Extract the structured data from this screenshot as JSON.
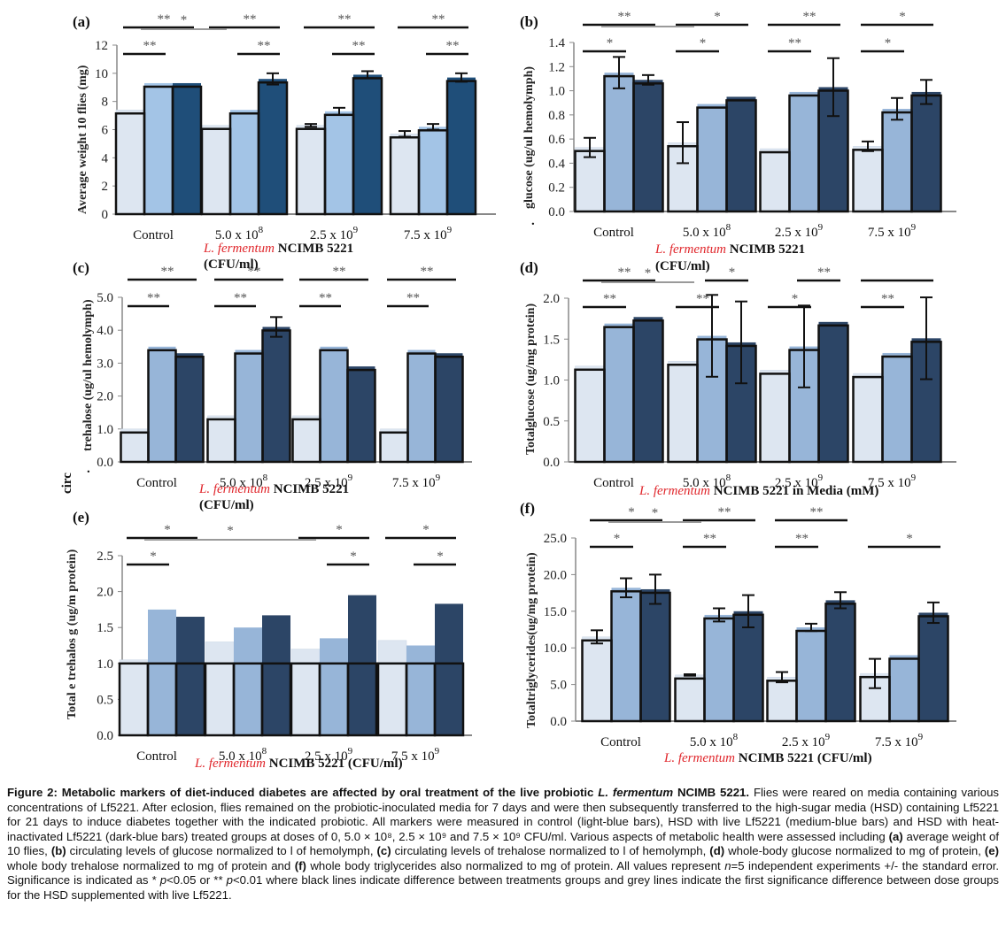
{
  "figure": {
    "caption_title": "Figure 2: Metabolic markers of diet-induced diabetes are affected by oral treatment of the live probiotic",
    "caption_species": "L. fermentum",
    "caption_strain": "NCIMB 5221.",
    "caption_body_1": "Flies were reared on media containing various concentrations of Lf5221. After eclosion, flies remained on the probiotic-inoculated media for 7 days and were then subsequently transferred to the high-sugar media (HSD) containing Lf5221 for 21 days to induce diabetes together with the indicated probiotic. All markers were measured in control (light-blue bars), HSD with live Lf5221 (medium-blue bars) and HSD with heat-inactivated Lf5221 (dark-blue bars) treated groups at doses of 0, 5.0 × 10⁸, 2.5 × 10⁹ and 7.5 × 10⁹ CFU/ml. Various aspects of metabolic health were assessed including",
    "cap_a": "(a)",
    "cap_a_text": "average weight of 10 flies,",
    "cap_b": "(b)",
    "cap_b_text": "circulating levels of glucose normalized to l of hemolymph,",
    "cap_c": "(c)",
    "cap_c_text": "circulating levels of trehalose normalized to l of hemolymph,",
    "cap_d": "(d)",
    "cap_d_text": "whole-body glucose normalized to mg of protein,",
    "cap_e": "(e)",
    "cap_e_text": "whole body trehalose normalized to mg of protein and",
    "cap_f": "(f)",
    "cap_f_text": "whole body triglycerides also normalized to mg of protein. All values represent",
    "cap_n": "n",
    "cap_n_text": "=5 independent experiments +/- the standard error. Significance is indicated as * ",
    "cap_p1": "p",
    "cap_p1_text": "<0.05 or ** ",
    "cap_p2": "p",
    "cap_p2_text": "<0.01 where black lines indicate difference between treatments groups and grey lines indicate the first significance difference between dose groups for the HSD supplemented with live Lf5221.",
    "stray_circ": "circ",
    "stray_dot_b": ".",
    "stray_dot_c": "."
  },
  "colors": {
    "control": "#dde6f1",
    "live": "#97b5d8",
    "heat": "#2c4566",
    "heat_a": "#1f4e79",
    "live_a": "#a3c4e6",
    "axis": "#888888",
    "sig_black": "#111111",
    "sig_grey": "#9a9a9a",
    "species_red": "#e0262b"
  },
  "chart_data": [
    {
      "id": "a",
      "panel_label": "(a)",
      "type": "bar",
      "title": "",
      "ylabel": "Average weight  10 flies (mg)",
      "xlabel_species": "L. fermentum",
      "xlabel_strain": "NCIMB 5221",
      "xlabel_units": "(CFU/ml)",
      "categories": [
        "Control",
        "5.0 x 10",
        "2.5 x 10",
        "7.5 x 10"
      ],
      "category_exponents": [
        "",
        "8",
        "9",
        "9"
      ],
      "ylim": [
        0,
        12
      ],
      "yticks": [
        "0",
        "2",
        "4",
        "6",
        "8",
        "10",
        "12"
      ],
      "ytick_values": [
        0,
        2,
        4,
        6,
        8,
        10,
        12
      ],
      "series": [
        {
          "name": "Control diet",
          "values": [
            7.4,
            6.3,
            6.3,
            5.7
          ],
          "errors": [
            0,
            0,
            0.1,
            0.2
          ]
        },
        {
          "name": "HSD + live Lf5221",
          "values": [
            9.3,
            7.4,
            7.3,
            6.2
          ],
          "errors": [
            0,
            0,
            0.25,
            0.2
          ]
        },
        {
          "name": "HSD + heat-inactivated Lf5221",
          "values": [
            9.3,
            9.6,
            9.9,
            9.7
          ],
          "errors": [
            0,
            0.4,
            0.25,
            0.3
          ]
        }
      ],
      "significance": [
        {
          "label": "**",
          "group": 0,
          "from": 0,
          "to": 1,
          "color": "black"
        },
        {
          "label": "**",
          "group": 0,
          "from": 0,
          "to": 2,
          "color": "black"
        },
        {
          "label": "**",
          "group": 1,
          "from": 1,
          "to": 2,
          "color": "black"
        },
        {
          "label": "**",
          "group": 1,
          "from": 0,
          "to": 2,
          "color": "black"
        },
        {
          "label": "**",
          "group": 2,
          "from": 1,
          "to": 2,
          "color": "black"
        },
        {
          "label": "**",
          "group": 2,
          "from": 0,
          "to": 2,
          "color": "black"
        },
        {
          "label": "**",
          "group": 3,
          "from": 1,
          "to": 2,
          "color": "black"
        },
        {
          "label": "**",
          "group": 3,
          "from": 0,
          "to": 2,
          "color": "black"
        },
        {
          "label": "*",
          "span": [
            0,
            1
          ],
          "color": "grey"
        }
      ]
    },
    {
      "id": "b",
      "panel_label": "(b)",
      "type": "bar",
      "ylabel": "glucose  (ug/ul  hemolymph)",
      "xlabel_species": "L. fermentum",
      "xlabel_strain": "NCIMB 5221",
      "xlabel_units": "(CFU/ml)",
      "categories": [
        "Control",
        "5.0 x 10",
        "2.5 x 10",
        "7.5 x 10"
      ],
      "category_exponents": [
        "",
        "8",
        "9",
        "9"
      ],
      "ylim": [
        0,
        1.4
      ],
      "yticks": [
        "0.0",
        "0.2",
        "0.4",
        "0.6",
        "0.8",
        "1.0",
        "1.2",
        "1.4"
      ],
      "ytick_values": [
        0,
        0.2,
        0.4,
        0.6,
        0.8,
        1.0,
        1.2,
        1.4
      ],
      "series": [
        {
          "name": "Control diet",
          "values": [
            0.53,
            0.57,
            0.52,
            0.54
          ],
          "errors": [
            0.08,
            0.17,
            0,
            0.04
          ]
        },
        {
          "name": "HSD + live Lf5221",
          "values": [
            1.15,
            0.89,
            0.99,
            0.85
          ],
          "errors": [
            0.13,
            0,
            0,
            0.09
          ]
        },
        {
          "name": "HSD + heat-inactivated Lf5221",
          "values": [
            1.09,
            0.95,
            1.03,
            0.99
          ],
          "errors": [
            0.04,
            0,
            0.24,
            0.1
          ]
        }
      ],
      "significance": [
        {
          "label": "*",
          "group": 0,
          "from": 0,
          "to": 1,
          "color": "black"
        },
        {
          "label": "**",
          "group": 0,
          "from": 0,
          "to": 2,
          "color": "black"
        },
        {
          "label": "*",
          "group": 1,
          "from": 0,
          "to": 1,
          "color": "black"
        },
        {
          "label": "*",
          "group": 1,
          "from": 0,
          "to": 2,
          "color": "black"
        },
        {
          "label": "**",
          "group": 2,
          "from": 0,
          "to": 1,
          "color": "black"
        },
        {
          "label": "**",
          "group": 2,
          "from": 0,
          "to": 2,
          "color": "black"
        },
        {
          "label": "*",
          "group": 3,
          "from": 0,
          "to": 1,
          "color": "black"
        },
        {
          "label": "*",
          "group": 3,
          "from": 0,
          "to": 2,
          "color": "black"
        },
        {
          "label": "",
          "span": [
            0,
            1
          ],
          "color": "grey"
        }
      ]
    },
    {
      "id": "c",
      "panel_label": "(c)",
      "type": "bar",
      "ylabel": "trehalose  (ug/ul  hemolymph)",
      "xlabel_species": "L. fermentum",
      "xlabel_strain": "NCIMB 5221",
      "xlabel_units": "(CFU/ml)",
      "categories": [
        "Control",
        "5.0 x 10",
        "2.5 x 10",
        "7.5 x 10"
      ],
      "category_exponents": [
        "",
        "8",
        "9",
        "9"
      ],
      "ylim": [
        0,
        5
      ],
      "yticks": [
        "0.0",
        "1.0",
        "2.0",
        "3.0",
        "4.0",
        "5.0"
      ],
      "ytick_values": [
        0,
        1,
        2,
        3,
        4,
        5
      ],
      "series": [
        {
          "name": "Control diet",
          "values": [
            1.0,
            1.4,
            1.4,
            1.0
          ],
          "errors": [
            0,
            0,
            0,
            0
          ]
        },
        {
          "name": "HSD + live Lf5221",
          "values": [
            3.5,
            3.4,
            3.5,
            3.4
          ],
          "errors": [
            0,
            0,
            0,
            0
          ]
        },
        {
          "name": "HSD + heat-inactivated Lf5221",
          "values": [
            3.3,
            4.1,
            2.9,
            3.3
          ],
          "errors": [
            0,
            0.3,
            0,
            0
          ]
        }
      ],
      "significance": [
        {
          "label": "**",
          "group": 0,
          "from": 0,
          "to": 1,
          "color": "black"
        },
        {
          "label": "**",
          "group": 0,
          "from": 0,
          "to": 2,
          "color": "black"
        },
        {
          "label": "**",
          "group": 1,
          "from": 0,
          "to": 1,
          "color": "black"
        },
        {
          "label": "**",
          "group": 1,
          "from": 0,
          "to": 2,
          "color": "black"
        },
        {
          "label": "**",
          "group": 2,
          "from": 0,
          "to": 1,
          "color": "black"
        },
        {
          "label": "**",
          "group": 2,
          "from": 0,
          "to": 2,
          "color": "black"
        },
        {
          "label": "**",
          "group": 3,
          "from": 0,
          "to": 1,
          "color": "black"
        },
        {
          "label": "**",
          "group": 3,
          "from": 0,
          "to": 2,
          "color": "black"
        }
      ]
    },
    {
      "id": "d",
      "panel_label": "(d)",
      "type": "bar",
      "ylabel": "Totalglucose (ug/mg  protein)",
      "xlabel_species": "L. fermentum",
      "xlabel_strain": "NCIMB 5221 in Media (mM)",
      "xlabel_units": "",
      "categories": [
        "Control",
        "5.0 x 10",
        "2.5 x 10",
        "7.5 x 10"
      ],
      "category_exponents": [
        "",
        "8",
        "9",
        "9"
      ],
      "ylim": [
        0,
        2.0
      ],
      "yticks": [
        "0.0",
        "0.5",
        "1.0",
        "1.5",
        "2.0"
      ],
      "ytick_values": [
        0,
        0.5,
        1.0,
        1.5,
        2.0
      ],
      "series": [
        {
          "name": "Control diet",
          "values": [
            1.17,
            1.23,
            1.12,
            1.08
          ],
          "errors": [
            0,
            0,
            0,
            0
          ]
        },
        {
          "name": "HSD + live Lf5221",
          "values": [
            1.69,
            1.54,
            1.41,
            1.33
          ],
          "errors": [
            0,
            0.5,
            0.5,
            0
          ]
        },
        {
          "name": "HSD + heat-inactivated Lf5221",
          "values": [
            1.77,
            1.46,
            1.71,
            1.51
          ],
          "errors": [
            0,
            0.5,
            0,
            0.5
          ]
        }
      ],
      "significance": [
        {
          "label": "**",
          "group": 0,
          "from": 0,
          "to": 1,
          "color": "black"
        },
        {
          "label": "**",
          "group": 0,
          "from": 0,
          "to": 2,
          "color": "black"
        },
        {
          "label": "**",
          "group": 1,
          "from": 0,
          "to": 1,
          "color": "black"
        },
        {
          "label": "*",
          "group": 1,
          "from": 1,
          "to": 2,
          "color": "black"
        },
        {
          "label": "*",
          "group": 2,
          "from": 0,
          "to": 1,
          "color": "black"
        },
        {
          "label": "**",
          "group": 2,
          "from": 1,
          "to": 2,
          "color": "black"
        },
        {
          "label": "**",
          "group": 3,
          "from": 0,
          "to": 1,
          "color": "black"
        },
        {
          "label": "",
          "group": 3,
          "from": 0,
          "to": 2,
          "color": "black"
        },
        {
          "label": "*",
          "span": [
            0,
            1
          ],
          "color": "grey"
        }
      ]
    },
    {
      "id": "e",
      "panel_label": "(e)",
      "type": "bar",
      "ylabel": "Total  e  trehalos  g  (ug/m  protein)",
      "xlabel_species": "L. fermentum",
      "xlabel_strain": "NCIMB 5221 (CFU/ml)",
      "xlabel_units": "",
      "categories": [
        "Control",
        "5.0 x 10",
        "2.5 x 10",
        "7.5 x 10"
      ],
      "category_exponents": [
        "",
        "8",
        "9",
        "9"
      ],
      "ylim": [
        0,
        2.5
      ],
      "yticks": [
        "0.0",
        "0.5",
        "1.0",
        "1.5",
        "2.0",
        "2.5"
      ],
      "ytick_values": [
        0,
        0.5,
        1.0,
        1.5,
        2.0,
        2.5
      ],
      "series": [
        {
          "name": "Control diet",
          "values": [
            1.05,
            1.3,
            1.2,
            1.32
          ],
          "errors": [
            0,
            0,
            0,
            0
          ]
        },
        {
          "name": "HSD + live Lf5221",
          "values": [
            1.75,
            1.5,
            1.35,
            1.25
          ],
          "errors": [
            0,
            0,
            0,
            0
          ]
        },
        {
          "name": "HSD + heat-inactivated Lf5221",
          "values": [
            1.65,
            1.67,
            1.95,
            1.83
          ],
          "errors": [
            0,
            0,
            0,
            0
          ]
        }
      ],
      "significance": [
        {
          "label": "*",
          "group": 0,
          "from": 0,
          "to": 1,
          "color": "black"
        },
        {
          "label": "*",
          "group": 0,
          "from": 0,
          "to": 2,
          "color": "black"
        },
        {
          "label": "*",
          "group": 2,
          "from": 1,
          "to": 2,
          "color": "black"
        },
        {
          "label": "*",
          "group": 2,
          "from": 0,
          "to": 2,
          "color": "black"
        },
        {
          "label": "*",
          "group": 3,
          "from": 1,
          "to": 2,
          "color": "black"
        },
        {
          "label": "*",
          "group": 3,
          "from": 0,
          "to": 2,
          "color": "black"
        },
        {
          "label": "*",
          "span": [
            0,
            2
          ],
          "color": "grey"
        }
      ]
    },
    {
      "id": "f",
      "panel_label": "(f)",
      "type": "bar",
      "ylabel": "Totaltriglycerides(ug/mg  protein)",
      "xlabel_species": "L. fermentum",
      "xlabel_strain": "NCIMB 5221 (CFU/ml)",
      "xlabel_units": "",
      "categories": [
        "Control",
        "5.0 x 10",
        "2.5 x 10",
        "7.5 x 10"
      ],
      "category_exponents": [
        "",
        "8",
        "9",
        "9"
      ],
      "ylim": [
        0,
        25
      ],
      "yticks": [
        "0.0",
        "5.0",
        "10.0",
        "15.0",
        "20.0",
        "25.0"
      ],
      "ytick_values": [
        0,
        5,
        10,
        15,
        20,
        25
      ],
      "series": [
        {
          "name": "Control diet",
          "values": [
            11.5,
            6.3,
            6.0,
            6.5
          ],
          "errors": [
            0.9,
            0.1,
            0.7,
            2.0
          ]
        },
        {
          "name": "HSD + live Lf5221",
          "values": [
            18.2,
            14.5,
            12.8,
            9.0
          ],
          "errors": [
            1.3,
            0.9,
            0.5,
            0
          ]
        },
        {
          "name": "HSD + heat-inactivated Lf5221",
          "values": [
            18.0,
            15.0,
            16.5,
            14.8
          ],
          "errors": [
            2.0,
            2.2,
            1.1,
            1.4
          ]
        }
      ],
      "significance": [
        {
          "label": "*",
          "group": 0,
          "from": 0,
          "to": 1,
          "color": "black"
        },
        {
          "label": "*",
          "group": 0,
          "from": 0,
          "to": 2,
          "color": "black"
        },
        {
          "label": "**",
          "group": 1,
          "from": 0,
          "to": 1,
          "color": "black"
        },
        {
          "label": "**",
          "group": 1,
          "from": 0,
          "to": 2,
          "color": "black"
        },
        {
          "label": "**",
          "group": 2,
          "from": 0,
          "to": 1,
          "color": "black"
        },
        {
          "label": "**",
          "group": 2,
          "from": 0,
          "to": 2,
          "color": "black"
        },
        {
          "label": "*",
          "group": 3,
          "from": 0,
          "to": 2,
          "color": "black"
        },
        {
          "label": "*",
          "span": [
            0,
            1
          ],
          "color": "grey"
        }
      ]
    }
  ]
}
